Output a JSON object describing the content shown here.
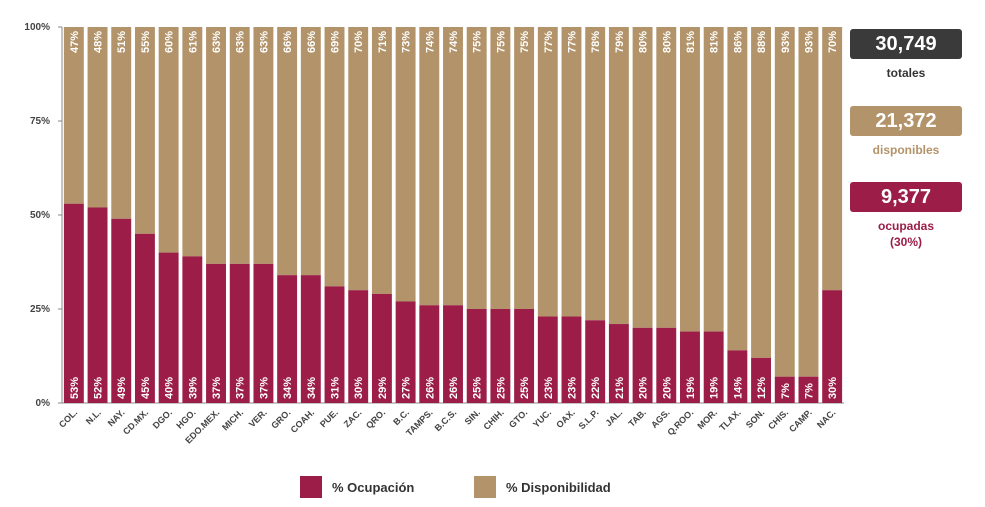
{
  "chart_data": {
    "type": "bar",
    "stacked": true,
    "categories": [
      "COL.",
      "N.L.",
      "NAY.",
      "CD.MX.",
      "DGO.",
      "HGO.",
      "EDO.MEX.",
      "MICH.",
      "VER.",
      "GRO.",
      "COAH.",
      "PUE.",
      "ZAC.",
      "QRO.",
      "B.C.",
      "TAMPS.",
      "B.C.S.",
      "SIN.",
      "CHIH.",
      "GTO.",
      "YUC.",
      "OAX.",
      "S.L.P.",
      "JAL.",
      "TAB.",
      "AGS.",
      "Q.ROO.",
      "MOR.",
      "TLAX.",
      "SON.",
      "CHIS.",
      "CAMP.",
      "NAC."
    ],
    "series": [
      {
        "name": "% Ocupación",
        "color": "#9b1d48",
        "values": [
          53,
          52,
          49,
          45,
          40,
          39,
          37,
          37,
          37,
          34,
          34,
          31,
          30,
          29,
          27,
          26,
          26,
          25,
          25,
          25,
          23,
          23,
          22,
          21,
          20,
          20,
          19,
          19,
          14,
          12,
          7,
          7,
          30
        ]
      },
      {
        "name": "% Disponibilidad",
        "color": "#b2936a",
        "values": [
          47,
          48,
          51,
          55,
          60,
          61,
          63,
          63,
          63,
          66,
          66,
          69,
          70,
          71,
          73,
          74,
          74,
          75,
          75,
          75,
          77,
          77,
          78,
          79,
          80,
          80,
          81,
          81,
          86,
          88,
          93,
          93,
          70
        ]
      }
    ],
    "yticks": [
      "0%",
      "25%",
      "50%",
      "75%",
      "100%"
    ],
    "ylim": [
      0,
      100
    ],
    "legend": "bottom"
  },
  "summary": {
    "total_value": "30,749",
    "total_caption": "totales",
    "available_value": "21,372",
    "available_caption": "disponibles",
    "occupied_value": "9,377",
    "occupied_caption": "ocupadas",
    "occupied_percent": "(30%)"
  },
  "legend": {
    "occupancy_label": "% Ocupación",
    "availability_label": "% Disponibilidad"
  },
  "colors": {
    "occupancy": "#9b1d48",
    "availability": "#b2936a",
    "total_box": "#3a3a3a",
    "axis": "#8a8a8a"
  }
}
